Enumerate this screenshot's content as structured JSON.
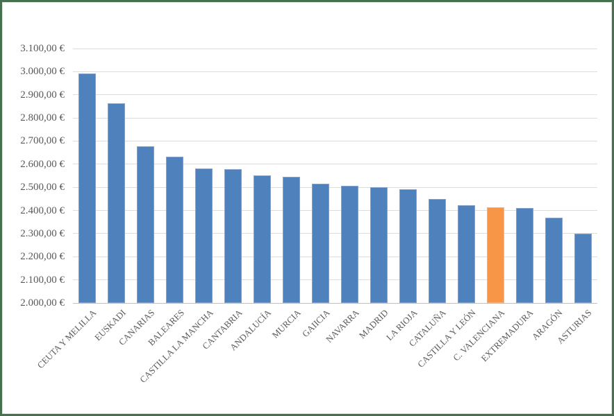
{
  "frame": {
    "border_color": "#47704f",
    "background": "#ffffff"
  },
  "chart_data": {
    "type": "bar",
    "title": "",
    "xlabel": "",
    "ylabel": "",
    "categories": [
      "CEUTA Y MELILLA",
      "EUSKADI",
      "CANARIAS",
      "BALEARES",
      "CASTILLA LA MANCHA",
      "CANTABRIA",
      "ANDALUCÍA",
      "MURCIA",
      "GAIICIA",
      "NAVARRA",
      "MADRID",
      "LA RIOJA",
      "CATALUÑA",
      "CASTILLA Y LEÓN",
      "C. VALENCIANA",
      "EXTREMADURA",
      "ARAGÓN",
      "ASTURIAS"
    ],
    "values": [
      2992,
      2862,
      2678,
      2631,
      2582,
      2578,
      2551,
      2546,
      2515,
      2507,
      2500,
      2491,
      2450,
      2422,
      2414,
      2411,
      2368,
      2300
    ],
    "highlight_index": 14,
    "highlight_category": "C. VALENCIANA",
    "bar_color": "#4F81BD",
    "highlight_color": "#F79646",
    "ylim": [
      2000,
      3100
    ],
    "ytick_step": 100,
    "ytick_labels": [
      "2.000,00 €",
      "2.100,00 €",
      "2.200,00 €",
      "2.300,00 €",
      "2.400,00 €",
      "2.500,00 €",
      "2.600,00 €",
      "2.700,00 €",
      "2.800,00 €",
      "2.900,00 €",
      "3.000,00 €",
      "3.100,00 €"
    ],
    "grid": true,
    "gridline_color": "#dcdcdc",
    "axis_line_color": "#bfbfbf",
    "tick_label_color": "#595959",
    "legend": "none",
    "x_label_rotation_deg": 45
  }
}
